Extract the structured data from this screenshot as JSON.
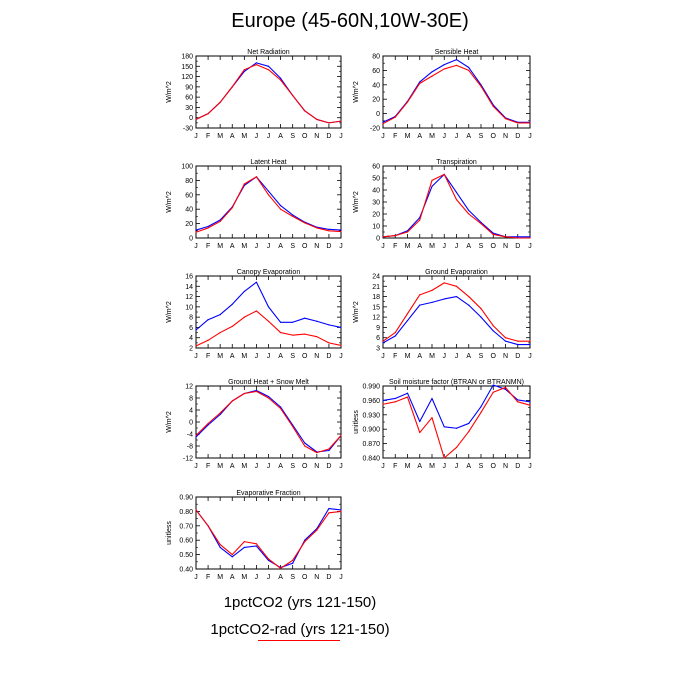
{
  "title": "Europe (45-60N,10W-30E)",
  "colors": {
    "series_1": "#0000ff",
    "series_2": "#ff0000",
    "axis": "#000000"
  },
  "legend": {
    "series_1": "1pctCO2 (yrs 121-150)",
    "series_2": "1pctCO2-rad (yrs 121-150)"
  },
  "chart_data": [
    {
      "type": "line",
      "title": "Net Radiation",
      "ylabel": "W/m^2",
      "categories": [
        "J",
        "F",
        "M",
        "A",
        "M",
        "J",
        "J",
        "A",
        "S",
        "O",
        "N",
        "D",
        "J"
      ],
      "ylim": [
        -30,
        180
      ],
      "yticks": [
        -30,
        0,
        30,
        60,
        90,
        120,
        150,
        180
      ],
      "yticklabels": [
        "-30",
        "0",
        "30",
        "60",
        "90",
        "120",
        "150",
        "180"
      ],
      "series": [
        {
          "values": [
            -5,
            12,
            45,
            90,
            135,
            160,
            150,
            115,
            65,
            20,
            -5,
            -15,
            -10
          ]
        },
        {
          "values": [
            -5,
            12,
            45,
            90,
            140,
            155,
            140,
            110,
            65,
            20,
            -5,
            -15,
            -10
          ]
        }
      ]
    },
    {
      "type": "line",
      "title": "Sensible Heat",
      "ylabel": "W/m^2",
      "categories": [
        "J",
        "F",
        "M",
        "A",
        "M",
        "J",
        "J",
        "A",
        "S",
        "O",
        "N",
        "D",
        "J"
      ],
      "ylim": [
        -20,
        80
      ],
      "yticks": [
        -20,
        0,
        20,
        40,
        60,
        80
      ],
      "yticklabels": [
        "-20",
        "0",
        "20",
        "40",
        "60",
        "80"
      ],
      "series": [
        {
          "values": [
            -12,
            -4,
            17,
            44,
            58,
            68,
            75,
            64,
            40,
            12,
            -6,
            -12,
            -12
          ]
        },
        {
          "values": [
            -14,
            -5,
            16,
            42,
            52,
            62,
            67,
            60,
            38,
            10,
            -7,
            -13,
            -13
          ]
        }
      ]
    },
    {
      "type": "line",
      "title": "Latent Heat",
      "ylabel": "W/m^2",
      "categories": [
        "J",
        "F",
        "M",
        "A",
        "M",
        "J",
        "J",
        "A",
        "S",
        "O",
        "N",
        "D",
        "J"
      ],
      "ylim": [
        0,
        100
      ],
      "yticks": [
        0,
        20,
        40,
        60,
        80,
        100
      ],
      "yticklabels": [
        "0",
        "20",
        "40",
        "60",
        "80",
        "100"
      ],
      "series": [
        {
          "values": [
            11,
            16,
            25,
            43,
            73,
            85,
            65,
            45,
            32,
            22,
            15,
            12,
            11
          ]
        },
        {
          "values": [
            8,
            14,
            23,
            42,
            75,
            85,
            60,
            40,
            30,
            21,
            14,
            10,
            9
          ]
        }
      ]
    },
    {
      "type": "line",
      "title": "Transpiration",
      "ylabel": "W/m^2",
      "categories": [
        "J",
        "F",
        "M",
        "A",
        "M",
        "J",
        "J",
        "A",
        "S",
        "O",
        "N",
        "D",
        "J"
      ],
      "ylim": [
        0,
        60
      ],
      "yticks": [
        0,
        10,
        20,
        30,
        40,
        50,
        60
      ],
      "yticklabels": [
        "0",
        "10",
        "20",
        "30",
        "40",
        "50",
        "60"
      ],
      "series": [
        {
          "values": [
            1,
            2,
            6,
            17,
            43,
            53,
            38,
            23,
            13,
            4,
            1,
            1,
            1
          ]
        },
        {
          "values": [
            1,
            2,
            5,
            15,
            48,
            53,
            32,
            20,
            12,
            3,
            1,
            0,
            0
          ]
        }
      ]
    },
    {
      "type": "line",
      "title": "Canopy Evaporation",
      "ylabel": "W/m^2",
      "categories": [
        "J",
        "F",
        "M",
        "A",
        "M",
        "J",
        "J",
        "A",
        "S",
        "O",
        "N",
        "D",
        "J"
      ],
      "ylim": [
        2,
        16
      ],
      "yticks": [
        2,
        4,
        6,
        8,
        10,
        12,
        14,
        16
      ],
      "yticklabels": [
        "2",
        "4",
        "6",
        "8",
        "10",
        "12",
        "14",
        "16"
      ],
      "series": [
        {
          "values": [
            5.5,
            7.5,
            8.5,
            10.5,
            13.0,
            14.8,
            10.0,
            7.0,
            7.0,
            7.8,
            7.2,
            6.5,
            6.0
          ]
        },
        {
          "values": [
            2.4,
            3.5,
            5.0,
            6.2,
            8.0,
            9.2,
            7.2,
            5.0,
            4.5,
            4.7,
            4.2,
            3.0,
            2.5
          ]
        }
      ]
    },
    {
      "type": "line",
      "title": "Ground Evaporation",
      "ylabel": "W/m^2",
      "categories": [
        "J",
        "F",
        "M",
        "A",
        "M",
        "J",
        "J",
        "A",
        "S",
        "O",
        "N",
        "D",
        "J"
      ],
      "ylim": [
        3,
        24
      ],
      "yticks": [
        3,
        6,
        9,
        12,
        15,
        18,
        21,
        24
      ],
      "yticklabels": [
        "3",
        "6",
        "9",
        "12",
        "15",
        "18",
        "21",
        "24"
      ],
      "series": [
        {
          "values": [
            4.5,
            6.5,
            11.0,
            15.5,
            16.3,
            17.3,
            18.0,
            15.5,
            12.0,
            8.0,
            5.0,
            4.0,
            4.0
          ]
        },
        {
          "values": [
            5.0,
            7.5,
            13.0,
            18.5,
            19.8,
            22.0,
            21.0,
            18.0,
            14.5,
            9.5,
            6.0,
            5.0,
            5.0
          ]
        }
      ]
    },
    {
      "type": "line",
      "title": "Ground Heat + Snow Melt",
      "ylabel": "W/m^2",
      "categories": [
        "J",
        "F",
        "M",
        "A",
        "M",
        "J",
        "J",
        "A",
        "S",
        "O",
        "N",
        "D",
        "J"
      ],
      "ylim": [
        -12,
        12
      ],
      "yticks": [
        -12,
        -8,
        -4,
        0,
        4,
        8,
        12
      ],
      "yticklabels": [
        "-12",
        "-8",
        "-4",
        "0",
        "4",
        "8",
        "12"
      ],
      "series": [
        {
          "values": [
            -5,
            -1,
            2.5,
            7,
            9.5,
            10.5,
            8.5,
            5,
            -1,
            -7,
            -10,
            -9.5,
            -4.5
          ]
        },
        {
          "values": [
            -4.5,
            -0.5,
            3,
            7,
            9.5,
            10.2,
            8,
            4.5,
            -1.5,
            -8,
            -10.2,
            -9,
            -4.5
          ]
        }
      ]
    },
    {
      "type": "line",
      "title": "Soil moisture factor (BTRAN or BTRANMN)",
      "ylabel": "unitless",
      "categories": [
        "J",
        "F",
        "M",
        "A",
        "M",
        "J",
        "J",
        "A",
        "S",
        "O",
        "N",
        "D",
        "J"
      ],
      "ylim": [
        0.84,
        0.99
      ],
      "yticks": [
        0.84,
        0.87,
        0.9,
        0.93,
        0.96,
        0.99
      ],
      "yticklabels": [
        "0.840",
        "0.870",
        "0.900",
        "0.930",
        "0.960",
        "0.990"
      ],
      "series": [
        {
          "values": [
            0.96,
            0.964,
            0.975,
            0.916,
            0.964,
            0.905,
            0.902,
            0.912,
            0.947,
            0.992,
            0.983,
            0.961,
            0.957
          ]
        },
        {
          "values": [
            0.952,
            0.957,
            0.967,
            0.893,
            0.924,
            0.84,
            0.862,
            0.895,
            0.935,
            0.977,
            0.987,
            0.957,
            0.95
          ]
        }
      ]
    },
    {
      "type": "line",
      "title": "Evaporative Fraction",
      "ylabel": "unitless",
      "categories": [
        "J",
        "F",
        "M",
        "A",
        "M",
        "J",
        "J",
        "A",
        "S",
        "O",
        "N",
        "D",
        "J"
      ],
      "ylim": [
        0.4,
        0.9
      ],
      "yticks": [
        0.4,
        0.5,
        0.6,
        0.7,
        0.8,
        0.9
      ],
      "yticklabels": [
        "0.40",
        "0.50",
        "0.60",
        "0.70",
        "0.80",
        "0.90"
      ],
      "series": [
        {
          "values": [
            0.81,
            0.7,
            0.55,
            0.485,
            0.55,
            0.56,
            0.46,
            0.41,
            0.44,
            0.6,
            0.68,
            0.82,
            0.81
          ]
        },
        {
          "values": [
            0.81,
            0.7,
            0.57,
            0.5,
            0.59,
            0.575,
            0.47,
            0.405,
            0.46,
            0.59,
            0.67,
            0.79,
            0.8
          ]
        }
      ]
    }
  ]
}
